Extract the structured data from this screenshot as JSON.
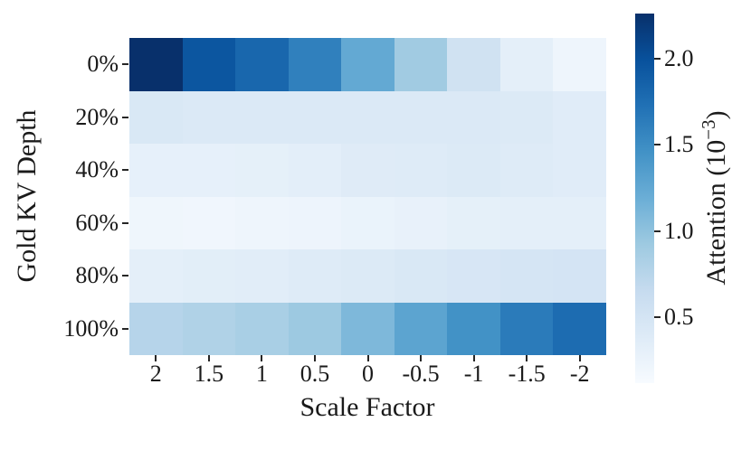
{
  "figure": {
    "background": "#ffffff",
    "text_color": "#1a1a1a"
  },
  "chart_data": {
    "type": "heatmap",
    "title": "",
    "xlabel": "Scale Factor",
    "ylabel": "Gold KV Depth",
    "x_categories": [
      "2",
      "1.5",
      "1",
      "0.5",
      "0",
      "-0.5",
      "-1",
      "-1.5",
      "-2"
    ],
    "y_categories": [
      "0%",
      "20%",
      "40%",
      "60%",
      "80%",
      "100%"
    ],
    "value_unit": "1e-3",
    "values": [
      [
        2.26,
        1.95,
        1.81,
        1.6,
        1.24,
        0.9,
        0.54,
        0.32,
        0.22
      ],
      [
        0.44,
        0.42,
        0.42,
        0.42,
        0.42,
        0.42,
        0.42,
        0.41,
        0.37
      ],
      [
        0.3,
        0.3,
        0.31,
        0.33,
        0.38,
        0.39,
        0.41,
        0.39,
        0.37
      ],
      [
        0.21,
        0.2,
        0.22,
        0.23,
        0.26,
        0.28,
        0.31,
        0.32,
        0.32
      ],
      [
        0.32,
        0.34,
        0.36,
        0.39,
        0.41,
        0.44,
        0.47,
        0.49,
        0.5
      ],
      [
        0.76,
        0.8,
        0.85,
        0.93,
        1.09,
        1.29,
        1.46,
        1.64,
        1.77
      ]
    ],
    "vmin": 0.12,
    "vmax": 2.26,
    "grid": false,
    "colormap": {
      "name": "Blues",
      "stops": [
        "#f7fbff",
        "#deebf7",
        "#c6dbef",
        "#9ecae1",
        "#6baed6",
        "#4292c6",
        "#2171b5",
        "#08519c",
        "#08306b"
      ]
    },
    "colorbar": {
      "position": "right",
      "label_prefix": "Attention (10",
      "label_sup": "−3",
      "label_suffix": ")",
      "ticks": [
        {
          "label": "0.5",
          "value": 0.5
        },
        {
          "label": "1.0",
          "value": 1.0
        },
        {
          "label": "1.5",
          "value": 1.5
        },
        {
          "label": "2.0",
          "value": 2.0
        }
      ]
    }
  }
}
